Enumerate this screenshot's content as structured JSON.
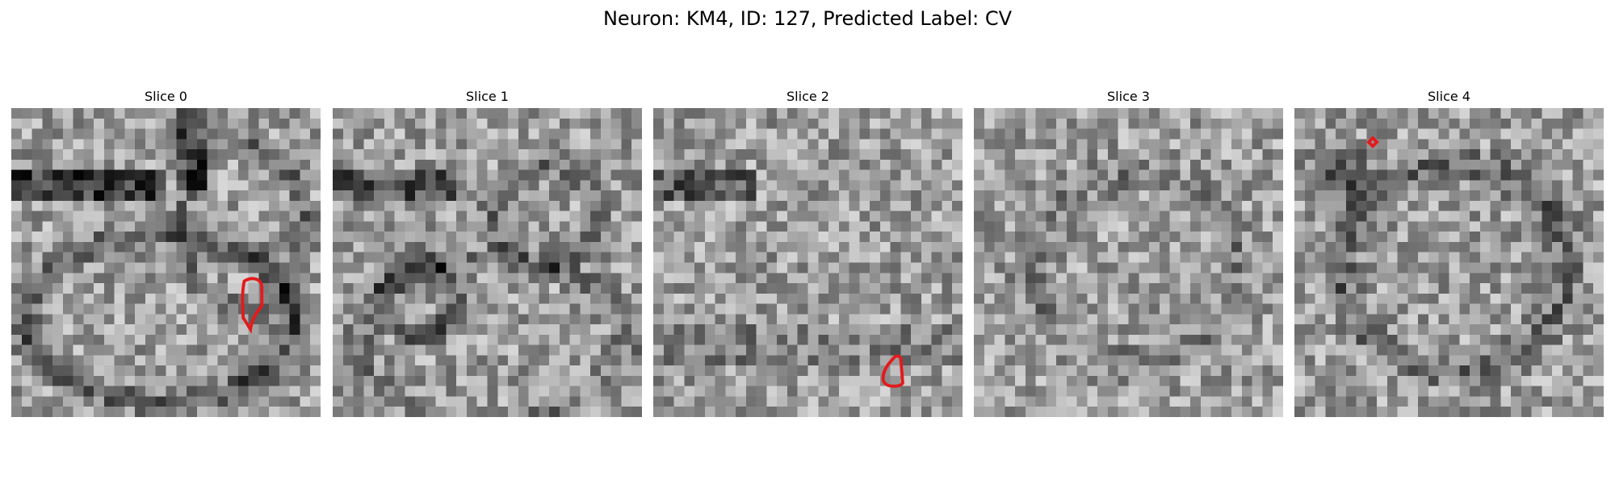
{
  "figure": {
    "title": "Neuron: KM4, ID: 127, Predicted Label: CV"
  },
  "panels": [
    {
      "title": "Slice 0",
      "seed": 11,
      "dark_features": "membrane-top-left, cell-outline",
      "has_contour": true,
      "contour_color": "#e41a1c"
    },
    {
      "title": "Slice 1",
      "seed": 23,
      "dark_features": "membrane-top, blob-left",
      "has_contour": false,
      "contour_color": ""
    },
    {
      "title": "Slice 2",
      "seed": 37,
      "dark_features": "membrane-top-left",
      "has_contour": true,
      "contour_color": "#e41a1c"
    },
    {
      "title": "Slice 3",
      "seed": 51,
      "dark_features": "faint-ring",
      "has_contour": false,
      "contour_color": ""
    },
    {
      "title": "Slice 4",
      "seed": 67,
      "dark_features": "dark-top-left, ring",
      "has_contour": true,
      "contour_color": "#e41a1c"
    }
  ],
  "colormap": "gray"
}
